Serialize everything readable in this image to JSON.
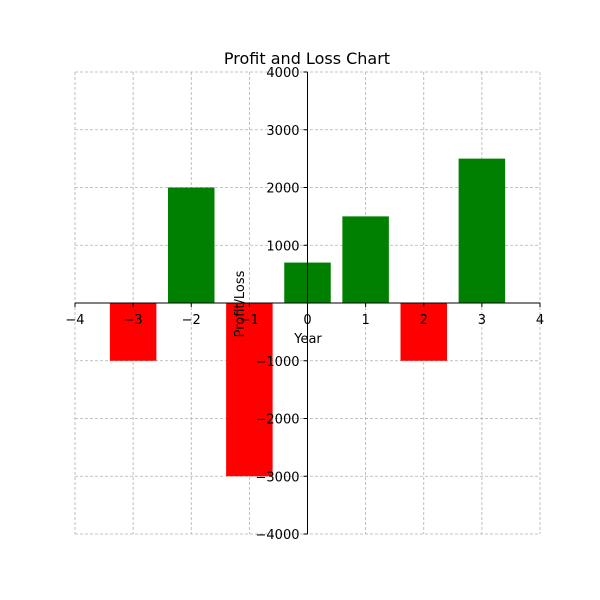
{
  "chart_data": {
    "type": "bar",
    "title": "Profit and Loss Chart",
    "xlabel": "Year",
    "ylabel": "Profit/Loss",
    "xlim": [
      -4,
      4
    ],
    "ylim": [
      -4000,
      4000
    ],
    "x_ticks": [
      -4,
      -3,
      -2,
      -1,
      0,
      1,
      2,
      3,
      4
    ],
    "y_ticks": [
      -4000,
      -3000,
      -2000,
      -1000,
      1000,
      2000,
      3000,
      4000
    ],
    "x_tick_labels": [
      "−4",
      "−3",
      "−2",
      "−1",
      "0",
      "1",
      "2",
      "3",
      "4"
    ],
    "y_tick_labels": [
      "−4000",
      "−3000",
      "−2000",
      "−1000",
      "1000",
      "2000",
      "3000",
      "4000"
    ],
    "bar_width": 0.8,
    "grid": true,
    "x": [
      -3,
      -2,
      -1,
      0,
      1,
      2,
      3
    ],
    "values": [
      -1000,
      2000,
      -3000,
      700,
      1500,
      -1000,
      2500
    ],
    "colors": {
      "positive": "#008000",
      "negative": "#ff0000"
    }
  }
}
